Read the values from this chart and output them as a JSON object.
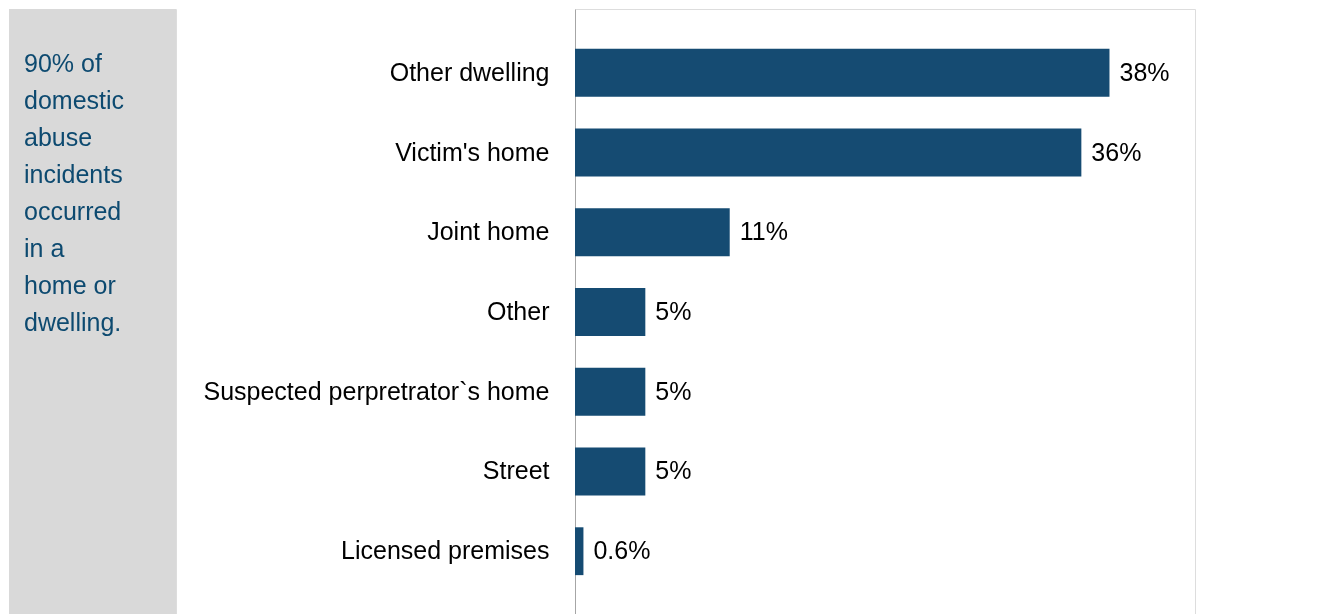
{
  "chart_data": {
    "type": "bar",
    "orientation": "horizontal",
    "categories": [
      "Other dwelling",
      "Victim's home",
      "Joint home",
      "Other",
      "Suspected perpretrator`s home",
      "Street",
      "Licensed premises"
    ],
    "values": [
      38,
      36,
      11,
      5,
      5,
      5,
      0.6
    ],
    "value_labels": [
      "38%",
      "36%",
      "11%",
      "5%",
      "5%",
      "5%",
      "0.6%"
    ],
    "color": "#154b72",
    "tick_labels": "y",
    "annotations": [
      "90% of domestic abuse incidents occurred in a home or dwelling."
    ]
  }
}
